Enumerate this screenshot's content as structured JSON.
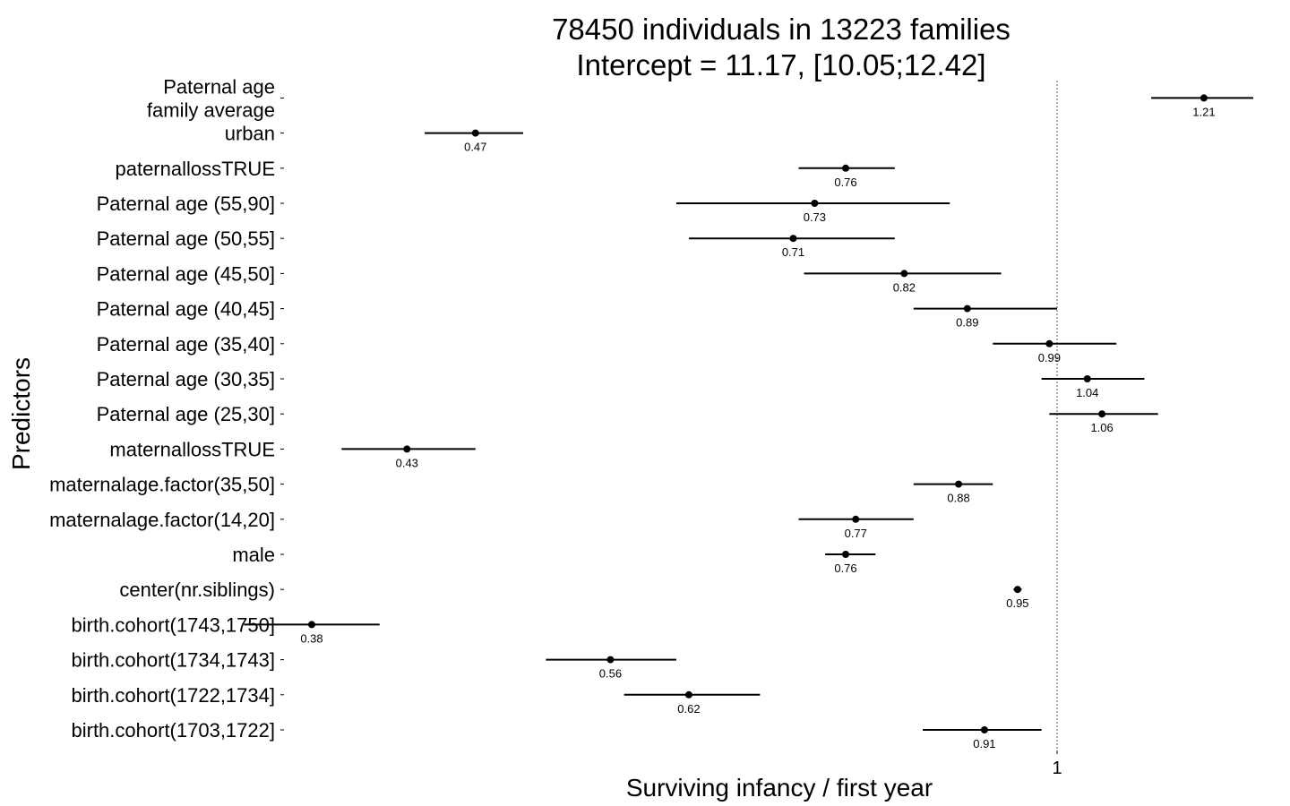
{
  "chart_data": {
    "type": "forest",
    "title": [
      "78450 individuals in 13223 families",
      "Intercept = 11.17, [10.05;12.42]"
    ],
    "xlabel": "Surviving infancy / first year",
    "ylabel": "Predictors",
    "x_scale": "log",
    "reference_line": 1,
    "x_ticks": [
      {
        "value": 1,
        "label": "1"
      }
    ],
    "rows": [
      {
        "label": "birth.cohort(1703,1722]",
        "estimate": 0.91,
        "lower": 0.84,
        "upper": 0.98,
        "value_label": "0.91"
      },
      {
        "label": "birth.cohort(1722,1734]",
        "estimate": 0.62,
        "lower": 0.57,
        "upper": 0.68,
        "value_label": "0.62"
      },
      {
        "label": "birth.cohort(1734,1743]",
        "estimate": 0.56,
        "lower": 0.515,
        "upper": 0.61,
        "value_label": "0.56"
      },
      {
        "label": "birth.cohort(1743,1750]",
        "estimate": 0.38,
        "lower": 0.348,
        "upper": 0.415,
        "value_label": "0.38"
      },
      {
        "label": "center(nr.siblings)",
        "estimate": 0.95,
        "lower": 0.945,
        "upper": 0.955,
        "value_label": "0.95"
      },
      {
        "label": "male",
        "estimate": 0.76,
        "lower": 0.74,
        "upper": 0.79,
        "value_label": "0.76"
      },
      {
        "label": "maternalage.factor(14,20]",
        "estimate": 0.77,
        "lower": 0.715,
        "upper": 0.83,
        "value_label": "0.77"
      },
      {
        "label": "maternalage.factor(35,50]",
        "estimate": 0.88,
        "lower": 0.83,
        "upper": 0.92,
        "value_label": "0.88"
      },
      {
        "label": "maternallossTRUE",
        "estimate": 0.43,
        "lower": 0.395,
        "upper": 0.47,
        "value_label": "0.43"
      },
      {
        "label": "Paternal age (25,30]",
        "estimate": 1.06,
        "lower": 0.99,
        "upper": 1.14,
        "value_label": "1.06"
      },
      {
        "label": "Paternal age (30,35]",
        "estimate": 1.04,
        "lower": 0.98,
        "upper": 1.12,
        "value_label": "1.04"
      },
      {
        "label": "Paternal age (35,40]",
        "estimate": 0.99,
        "lower": 0.92,
        "upper": 1.08,
        "value_label": "0.99"
      },
      {
        "label": "Paternal age (40,45]",
        "estimate": 0.89,
        "lower": 0.83,
        "upper": 1.0,
        "value_label": "0.89"
      },
      {
        "label": "Paternal age (45,50]",
        "estimate": 0.82,
        "lower": 0.72,
        "upper": 0.93,
        "value_label": "0.82"
      },
      {
        "label": "Paternal age (50,55]",
        "estimate": 0.71,
        "lower": 0.62,
        "upper": 0.81,
        "value_label": "0.71"
      },
      {
        "label": "Paternal age (55,90]",
        "estimate": 0.73,
        "lower": 0.61,
        "upper": 0.87,
        "value_label": "0.73"
      },
      {
        "label": "paternallossTRUE",
        "estimate": 0.76,
        "lower": 0.715,
        "upper": 0.81,
        "value_label": "0.76"
      },
      {
        "label": "Paternal age\nfamily average\nurban",
        "estimate": 0.47,
        "lower": 0.44,
        "upper": 0.5,
        "value_label": "0.47"
      },
      {
        "label": "",
        "estimate": 1.21,
        "lower": 1.13,
        "upper": 1.29,
        "value_label": "1.21"
      }
    ],
    "legend": null,
    "grid": false
  }
}
